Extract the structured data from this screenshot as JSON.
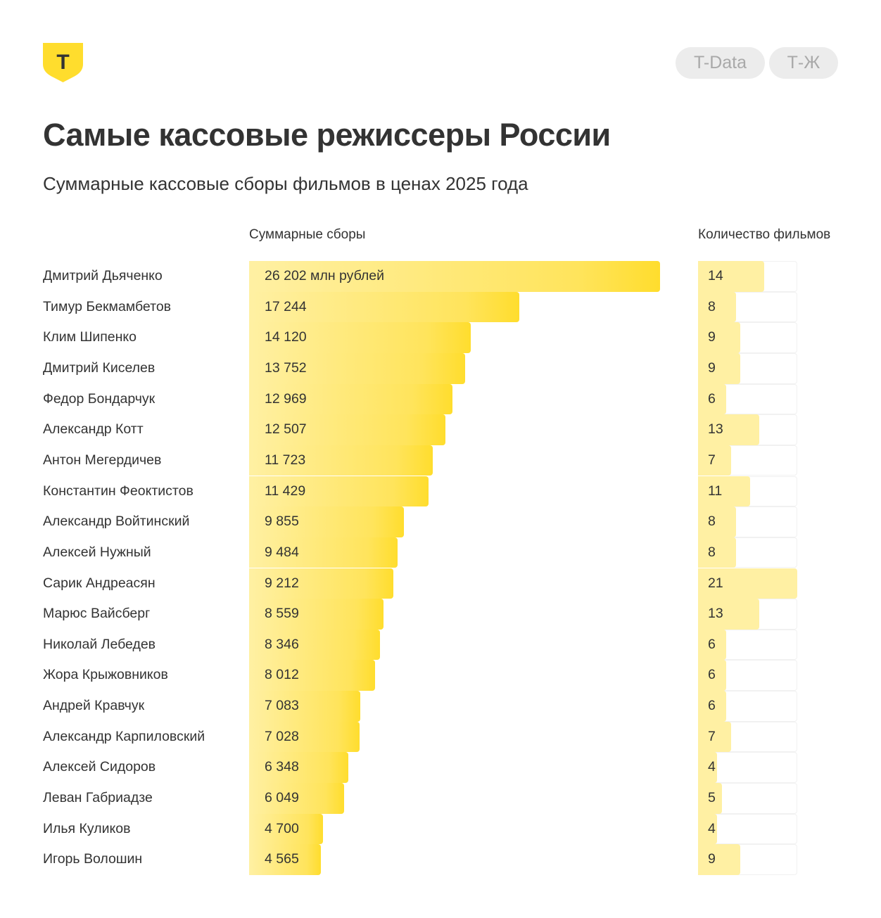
{
  "header": {
    "brand_letter": "Т",
    "tags": [
      "T-Data",
      "Т-Ж"
    ],
    "title": "Самые кассовые режиссеры России",
    "subtitle": "Суммарные кассовые сборы фильмов в ценах 2025 года"
  },
  "colors": {
    "logo": "#ffdd2d",
    "bar_start": "#fff0a3",
    "bar_end": "#ffdd2d",
    "count_bar": "#fff0a3",
    "tag_bg": "#ececec",
    "tag_text": "#a9a9a9"
  },
  "chart_data": {
    "type": "bar",
    "orientation": "horizontal",
    "column_headers": {
      "gross": "Суммарные сборы",
      "count": "Количество фильмов"
    },
    "first_value_label": "26 202 млн рублей",
    "categories": [
      "Дмитрий Дьяченко",
      "Тимур Бекмамбетов",
      "Клим Шипенко",
      "Дмитрий Киселев",
      "Федор Бондарчук",
      "Александр Котт",
      "Антон Мегердичев",
      "Константин Феоктистов",
      "Александр Войтинский",
      "Алексей Нужный",
      "Сарик Андреасян",
      "Марюс Вайсберг",
      "Николай Лебедев",
      "Жора Крыжовников",
      "Андрей Кравчук",
      "Александр Карпиловский",
      "Алексей Сидоров",
      "Леван Габриадзе",
      "Илья Куликов",
      "Игорь Волошин"
    ],
    "series": [
      {
        "name": "Суммарные сборы",
        "values": [
          26202,
          17244,
          14120,
          13752,
          12969,
          12507,
          11723,
          11429,
          9855,
          9484,
          9212,
          8559,
          8346,
          8012,
          7083,
          7028,
          6348,
          6049,
          4700,
          4565
        ],
        "labels": [
          "26 202 млн рублей",
          "17 244",
          "14 120",
          "13 752",
          "12 969",
          "12 507",
          "11 723",
          "11 429",
          "9 855",
          "9 484",
          "9 212",
          "8 559",
          "8 346",
          "8 012",
          "7 083",
          "7 028",
          "6 348",
          "6 049",
          "4 700",
          "4 565"
        ]
      },
      {
        "name": "Количество фильмов",
        "values": [
          14,
          8,
          9,
          9,
          6,
          13,
          7,
          11,
          8,
          8,
          21,
          13,
          6,
          6,
          6,
          7,
          4,
          5,
          4,
          9
        ]
      }
    ],
    "gross_max": 26202,
    "count_max": 21,
    "grid": false
  }
}
